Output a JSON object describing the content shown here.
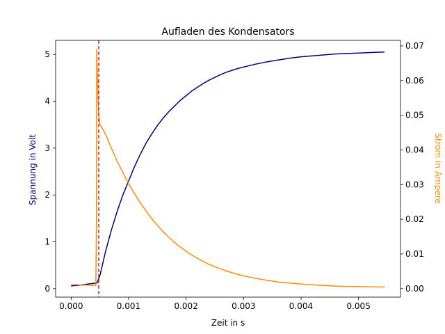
{
  "chart_data": {
    "type": "line",
    "title": "Aufladen des Kondensators",
    "xlabel": "Zeit in s",
    "ylabel_left": "Spannung in Volt",
    "ylabel_right": "Strom in Ampere",
    "xlim": [
      -0.00027,
      0.00573
    ],
    "ylim_left": [
      -0.18,
      5.3
    ],
    "ylim_right": [
      -0.00245,
      0.0716
    ],
    "x_ticks": [
      {
        "value": 0.0,
        "label": "0.000"
      },
      {
        "value": 0.001,
        "label": "0.001"
      },
      {
        "value": 0.002,
        "label": "0.002"
      },
      {
        "value": 0.003,
        "label": "0.003"
      },
      {
        "value": 0.004,
        "label": "0.004"
      },
      {
        "value": 0.005,
        "label": "0.005"
      }
    ],
    "y_ticks_left": [
      {
        "value": 0,
        "label": "0"
      },
      {
        "value": 1,
        "label": "1"
      },
      {
        "value": 2,
        "label": "2"
      },
      {
        "value": 3,
        "label": "3"
      },
      {
        "value": 4,
        "label": "4"
      },
      {
        "value": 5,
        "label": "5"
      }
    ],
    "y_ticks_right": [
      {
        "value": 0.0,
        "label": "0.00"
      },
      {
        "value": 0.01,
        "label": "0.01"
      },
      {
        "value": 0.02,
        "label": "0.02"
      },
      {
        "value": 0.03,
        "label": "0.03"
      },
      {
        "value": 0.04,
        "label": "0.04"
      },
      {
        "value": 0.05,
        "label": "0.05"
      },
      {
        "value": 0.06,
        "label": "0.06"
      },
      {
        "value": 0.07,
        "label": "0.07"
      }
    ],
    "vline": {
      "x": 0.00048,
      "color": "#d62728",
      "style": "dashed"
    },
    "grid": false,
    "series": [
      {
        "axis": "left",
        "color": "#000080",
        "points": [
          [
            0.0,
            0.06
          ],
          [
            0.0001,
            0.07
          ],
          [
            0.0002,
            0.085
          ],
          [
            0.0003,
            0.1
          ],
          [
            0.0004,
            0.115
          ],
          [
            0.00045,
            0.12
          ],
          [
            0.0005,
            0.28
          ],
          [
            0.0006,
            0.8
          ],
          [
            0.0007,
            1.25
          ],
          [
            0.0008,
            1.65
          ],
          [
            0.0009,
            2.0
          ],
          [
            0.001,
            2.3
          ],
          [
            0.0011,
            2.6
          ],
          [
            0.0012,
            2.86
          ],
          [
            0.0013,
            3.1
          ],
          [
            0.0014,
            3.3
          ],
          [
            0.0015,
            3.48
          ],
          [
            0.0016,
            3.64
          ],
          [
            0.0017,
            3.78
          ],
          [
            0.0018,
            3.9
          ],
          [
            0.0019,
            4.02
          ],
          [
            0.002,
            4.12
          ],
          [
            0.0021,
            4.22
          ],
          [
            0.0022,
            4.3
          ],
          [
            0.0023,
            4.38
          ],
          [
            0.0024,
            4.45
          ],
          [
            0.0025,
            4.51
          ],
          [
            0.0026,
            4.57
          ],
          [
            0.0027,
            4.62
          ],
          [
            0.0028,
            4.66
          ],
          [
            0.0029,
            4.7
          ],
          [
            0.003,
            4.73
          ],
          [
            0.0032,
            4.79
          ],
          [
            0.0034,
            4.84
          ],
          [
            0.0036,
            4.88
          ],
          [
            0.0038,
            4.92
          ],
          [
            0.004,
            4.95
          ],
          [
            0.0042,
            4.97
          ],
          [
            0.0044,
            4.99
          ],
          [
            0.0046,
            5.01
          ],
          [
            0.0048,
            5.02
          ],
          [
            0.005,
            5.03
          ],
          [
            0.0052,
            5.04
          ],
          [
            0.00545,
            5.05
          ]
        ]
      },
      {
        "axis": "right",
        "color": "#ff8c00",
        "points": [
          [
            0.0,
            0.0011
          ],
          [
            0.0001,
            0.0011
          ],
          [
            0.0002,
            0.00105
          ],
          [
            0.0003,
            0.001
          ],
          [
            0.0004,
            0.00095
          ],
          [
            0.00043,
            0.0009
          ],
          [
            0.00044,
            0.02
          ],
          [
            0.000445,
            0.069
          ],
          [
            0.00046,
            0.06
          ],
          [
            0.00048,
            0.05
          ],
          [
            0.0005,
            0.0475
          ],
          [
            0.0006,
            0.0445
          ],
          [
            0.0007,
            0.0405
          ],
          [
            0.0008,
            0.0368
          ],
          [
            0.0009,
            0.0335
          ],
          [
            0.001,
            0.0302
          ],
          [
            0.0011,
            0.0275
          ],
          [
            0.0012,
            0.0248
          ],
          [
            0.0013,
            0.0225
          ],
          [
            0.0014,
            0.0202
          ],
          [
            0.0015,
            0.0183
          ],
          [
            0.0016,
            0.0164
          ],
          [
            0.0017,
            0.0148
          ],
          [
            0.0018,
            0.0133
          ],
          [
            0.0019,
            0.012
          ],
          [
            0.002,
            0.0108
          ],
          [
            0.0021,
            0.0097
          ],
          [
            0.0022,
            0.0087
          ],
          [
            0.0023,
            0.0078
          ],
          [
            0.0024,
            0.007
          ],
          [
            0.0025,
            0.0063
          ],
          [
            0.0026,
            0.0057
          ],
          [
            0.0027,
            0.0051
          ],
          [
            0.0028,
            0.0046
          ],
          [
            0.0029,
            0.0041
          ],
          [
            0.003,
            0.0037
          ],
          [
            0.0032,
            0.003
          ],
          [
            0.0034,
            0.0024
          ],
          [
            0.0036,
            0.0019
          ],
          [
            0.0038,
            0.0016
          ],
          [
            0.004,
            0.0013
          ],
          [
            0.0042,
            0.0011
          ],
          [
            0.0044,
            0.0009
          ],
          [
            0.0046,
            0.00075
          ],
          [
            0.0048,
            0.00065
          ],
          [
            0.005,
            0.0006
          ],
          [
            0.0052,
            0.0005
          ],
          [
            0.00545,
            0.00045
          ]
        ]
      }
    ]
  }
}
